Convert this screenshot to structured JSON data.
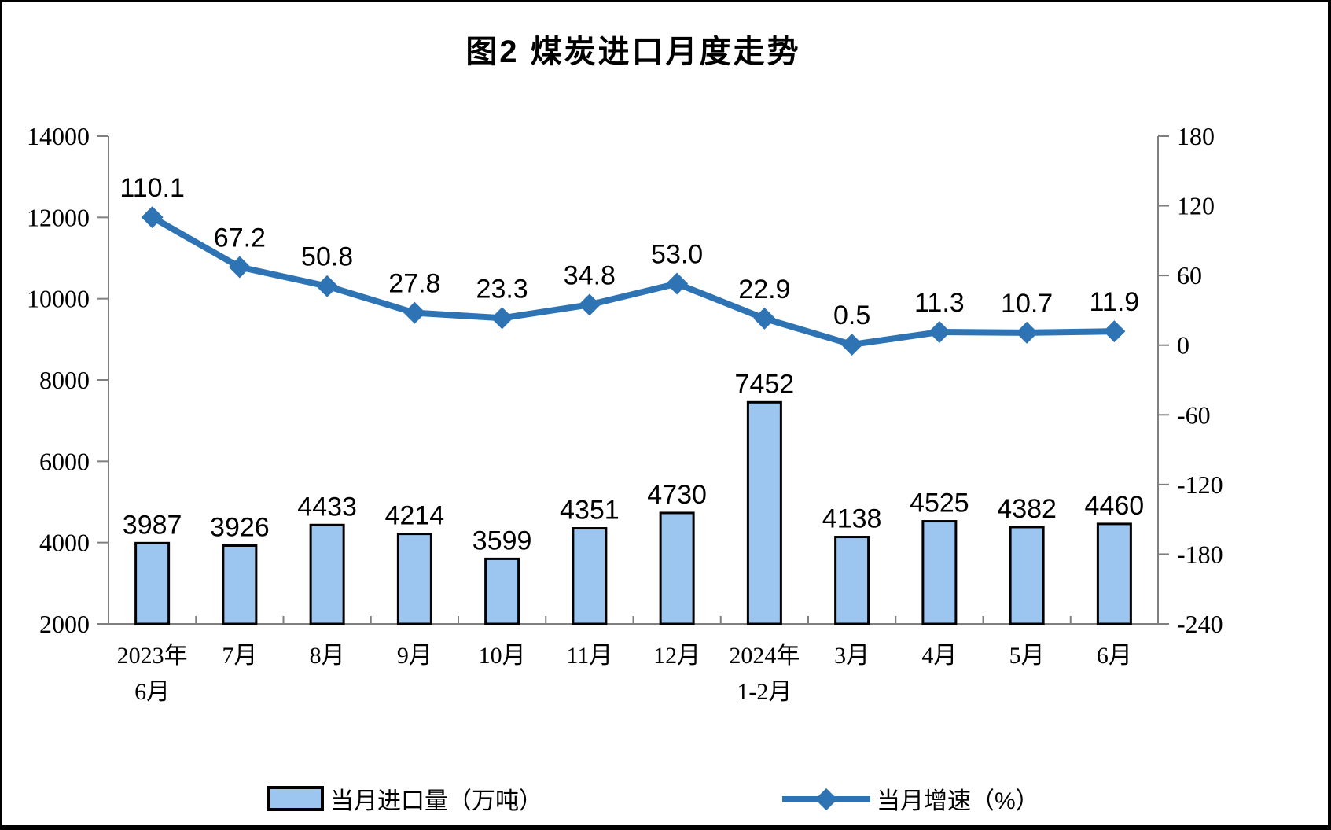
{
  "title": "图2  煤炭进口月度走势",
  "legend": {
    "bar_label": "当月进口量（万吨）",
    "line_label": "当月增速（%）"
  },
  "colors": {
    "bar_fill": "#9CC6F0",
    "bar_border": "#000000",
    "line": "#2E74B5",
    "axis": "#7f7f7f",
    "text": "#000000"
  },
  "chart_data": {
    "type": "bar",
    "subtype": "bar+line combo, dual axis",
    "title": "图2  煤炭进口月度走势",
    "categories": [
      [
        "2023年",
        "6月"
      ],
      [
        "7月"
      ],
      [
        "8月"
      ],
      [
        "9月"
      ],
      [
        "10月"
      ],
      [
        "11月"
      ],
      [
        "12月"
      ],
      [
        "2024年",
        "1-2月"
      ],
      [
        "3月"
      ],
      [
        "4月"
      ],
      [
        "5月"
      ],
      [
        "6月"
      ]
    ],
    "series": [
      {
        "name": "当月进口量（万吨）",
        "type": "bar",
        "axis": "left",
        "values": [
          3987,
          3926,
          4433,
          4214,
          3599,
          4351,
          4730,
          7452,
          4138,
          4525,
          4382,
          4460
        ]
      },
      {
        "name": "当月增速（%）",
        "type": "line",
        "axis": "right",
        "marker": "diamond",
        "values": [
          110.1,
          67.2,
          50.8,
          27.8,
          23.3,
          34.8,
          53.0,
          22.9,
          0.5,
          11.3,
          10.7,
          11.9
        ]
      }
    ],
    "left_axis": {
      "min": 2000,
      "max": 14000,
      "ticks": [
        2000,
        4000,
        6000,
        8000,
        10000,
        12000,
        14000
      ]
    },
    "right_axis": {
      "min": -240,
      "max": 180,
      "ticks": [
        -240,
        -180,
        -120,
        -60,
        0,
        60,
        120,
        180
      ]
    },
    "grid": false,
    "data_labels": true,
    "legend_position": "bottom"
  }
}
